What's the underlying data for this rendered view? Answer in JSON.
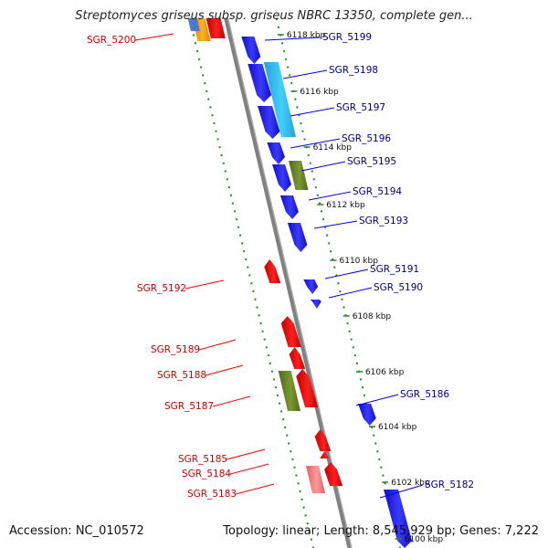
{
  "title": "Streptomyces griseus subsp. griseus NBRC 13350, complete gen...",
  "footer": {
    "accession": "Accession: NC_010572",
    "summary": "Topology: linear; Length: 8,545,929 bp; Genes: 7,222"
  },
  "colors": {
    "backbone": "#808080",
    "forward_gene": "#0000ff",
    "reverse_gene": "#ff0000",
    "olive_gene": "#6b8e23",
    "light_red_gene": "#f08080",
    "light_blue_gene": "#00bfff",
    "orange_gene": "#ffa500",
    "dotted_track": "#228b22",
    "label_forward": "#00008b",
    "label_reverse": "#cc0000"
  },
  "kbp_ticks": [
    "6118 kbp",
    "6116 kbp",
    "6114 kbp",
    "6112 kbp",
    "6110 kbp",
    "6108 kbp",
    "6106 kbp",
    "6104 kbp",
    "6102 kbp",
    "6100 kbp"
  ],
  "labels_forward": [
    "SGR_5199",
    "SGR_5198",
    "SGR_5197",
    "SGR_5196",
    "SGR_5195",
    "SGR_5194",
    "SGR_5193",
    "SGR_5191",
    "SGR_5190",
    "SGR_5186",
    "SGR_5182"
  ],
  "labels_reverse": [
    "SGR_5200",
    "SGR_5192",
    "SGR_5189",
    "SGR_5188",
    "SGR_5187",
    "SGR_5185",
    "SGR_5184",
    "SGR_5183"
  ]
}
